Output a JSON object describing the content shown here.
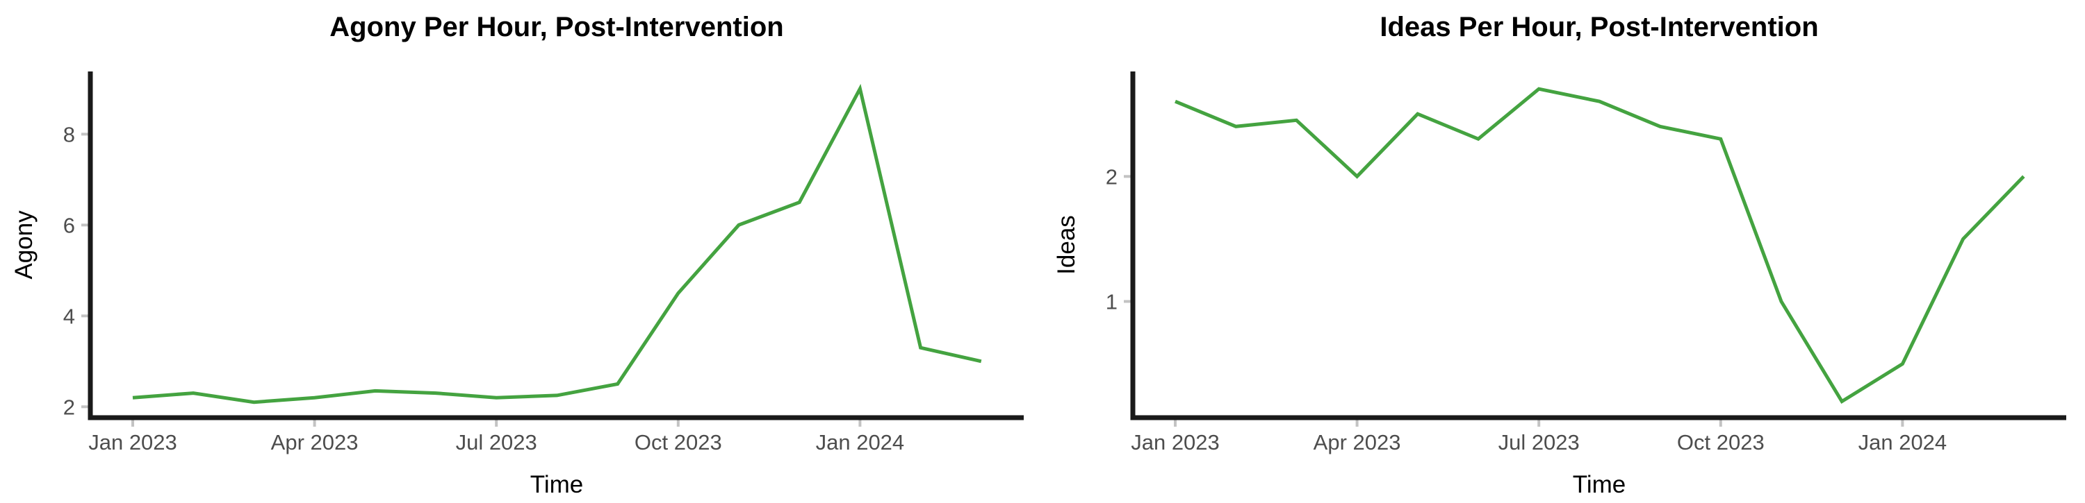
{
  "figure": {
    "background": "#ffffff",
    "line_color": "#44a340",
    "axis_line_color": "#1a1a1a",
    "tick_mark_color": "#c3c3c3",
    "tick_label_color": "#4d4d4d"
  },
  "chart_data": [
    {
      "type": "line",
      "title": "Agony Per Hour, Post-Intervention",
      "xlabel": "Time",
      "ylabel": "Agony",
      "legend": "none",
      "grid": false,
      "x": [
        "Jan 2023",
        "Feb 2023",
        "Mar 2023",
        "Apr 2023",
        "May 2023",
        "Jun 2023",
        "Jul 2023",
        "Aug 2023",
        "Sep 2023",
        "Oct 2023",
        "Nov 2023",
        "Dec 2023",
        "Jan 2024",
        "Feb 2024",
        "Mar 2024"
      ],
      "values": [
        2.2,
        2.3,
        2.1,
        2.2,
        2.35,
        2.3,
        2.2,
        2.25,
        2.5,
        4.5,
        6.0,
        6.5,
        9.0,
        3.3,
        3.0
      ],
      "x_tick_labels": [
        "Jan 2023",
        "Apr 2023",
        "Jul 2023",
        "Oct 2023",
        "Jan 2024"
      ],
      "x_tick_indices": [
        0,
        3,
        6,
        9,
        12
      ],
      "y_ticks": [
        2,
        4,
        6,
        8
      ],
      "ylim": [
        1.76,
        9.38
      ],
      "line_color": "#44a340"
    },
    {
      "type": "line",
      "title": "Ideas Per Hour, Post-Intervention",
      "xlabel": "Time",
      "ylabel": "Ideas",
      "legend": "none",
      "grid": false,
      "x": [
        "Jan 2023",
        "Feb 2023",
        "Mar 2023",
        "Apr 2023",
        "May 2023",
        "Jun 2023",
        "Jul 2023",
        "Aug 2023",
        "Sep 2023",
        "Oct 2023",
        "Nov 2023",
        "Dec 2023",
        "Jan 2024",
        "Feb 2024",
        "Mar 2024"
      ],
      "values": [
        2.6,
        2.4,
        2.45,
        2.0,
        2.5,
        2.3,
        2.7,
        2.6,
        2.4,
        2.3,
        1.0,
        0.2,
        0.5,
        1.5,
        2.0
      ],
      "x_tick_labels": [
        "Jan 2023",
        "Apr 2023",
        "Jul 2023",
        "Oct 2023",
        "Jan 2024"
      ],
      "x_tick_indices": [
        0,
        3,
        6,
        9,
        12
      ],
      "y_ticks": [
        1,
        2
      ],
      "ylim": [
        0.07,
        2.84
      ],
      "line_color": "#44a340"
    }
  ]
}
